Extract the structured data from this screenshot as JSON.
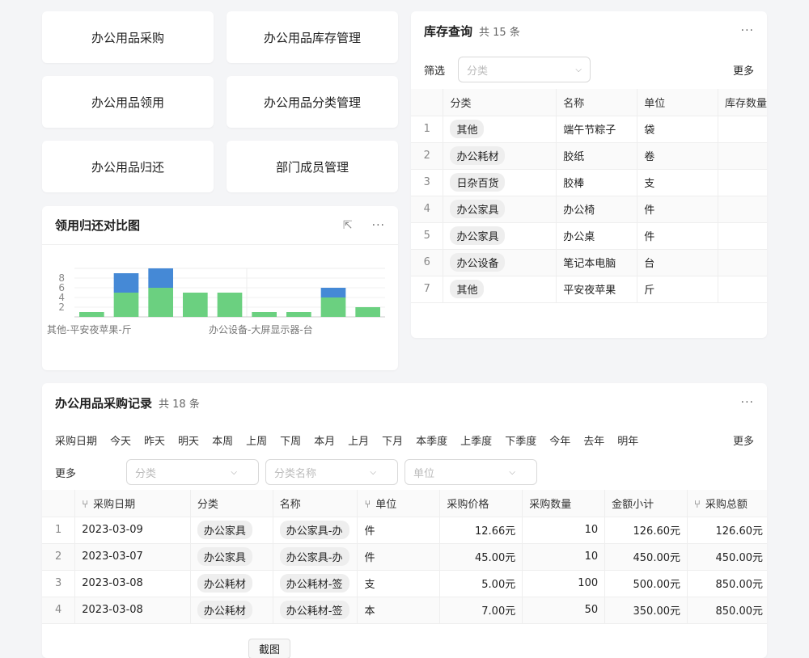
{
  "nav": [
    "办公用品采购",
    "办公用品库存管理",
    "办公用品领用",
    "办公用品分类管理",
    "办公用品归还",
    "部门成员管理"
  ],
  "inventory": {
    "title": "库存查询",
    "count": "共 15 条",
    "filter_label": "筛选",
    "filter_placeholder": "分类",
    "more": "更多",
    "columns": [
      "分类",
      "名称",
      "单位",
      "库存数量"
    ],
    "rows": [
      [
        "1",
        "其他",
        "端午节粽子",
        "袋"
      ],
      [
        "2",
        "办公耗材",
        "胶纸",
        "卷"
      ],
      [
        "3",
        "日杂百货",
        "胶棒",
        "支"
      ],
      [
        "4",
        "办公家具",
        "办公椅",
        "件"
      ],
      [
        "5",
        "办公家具",
        "办公桌",
        "件"
      ],
      [
        "6",
        "办公设备",
        "笔记本电脑",
        "台"
      ],
      [
        "7",
        "其他",
        "平安夜苹果",
        "斤"
      ]
    ]
  },
  "chart": {
    "title": "领用归还对比图"
  },
  "chart_data": {
    "type": "bar",
    "stacked": true,
    "categories": [
      "其他-平安夜苹果-斤",
      null,
      null,
      null,
      null,
      "办公设备-大屏显示器-台",
      null,
      null,
      null
    ],
    "series": [
      {
        "color": "#6bd080",
        "values": [
          1,
          5,
          6,
          5,
          5,
          1,
          1,
          4,
          2
        ]
      },
      {
        "color": "#4589d6",
        "values": [
          0,
          4,
          4,
          0,
          0,
          0,
          0,
          2,
          0
        ]
      }
    ],
    "yticks": [
      2,
      4,
      6,
      8
    ],
    "ylim": [
      0,
      10
    ],
    "grid": true
  },
  "purchase": {
    "title": "办公用品采购记录",
    "count": "共 18 条",
    "date_label": "采购日期",
    "date_options": [
      "今天",
      "昨天",
      "明天",
      "本周",
      "上周",
      "下周",
      "本月",
      "上月",
      "下月",
      "本季度",
      "上季度",
      "下季度",
      "今年",
      "去年",
      "明年"
    ],
    "more": "更多",
    "more_label": "更多",
    "filters": [
      "分类",
      "分类名称",
      "单位"
    ],
    "columns": [
      "采购日期",
      "分类",
      "名称",
      "单位",
      "采购价格",
      "采购数量",
      "金额小计",
      "采购总额"
    ],
    "rows": [
      [
        "1",
        "2023-03-09",
        "办公家具",
        "办公家具-办",
        "件",
        "12.66元",
        "10",
        "126.60元",
        "126.60元"
      ],
      [
        "2",
        "2023-03-07",
        "办公家具",
        "办公家具-办",
        "件",
        "45.00元",
        "10",
        "450.00元",
        "450.00元"
      ],
      [
        "3",
        "2023-03-08",
        "办公耗材",
        "办公耗材-签",
        "支",
        "5.00元",
        "100",
        "500.00元",
        "850.00元"
      ],
      [
        "4",
        "2023-03-08",
        "办公耗材",
        "办公耗材-签",
        "本",
        "7.00元",
        "50",
        "350.00元",
        "850.00元"
      ]
    ],
    "footer_button": "截图"
  }
}
